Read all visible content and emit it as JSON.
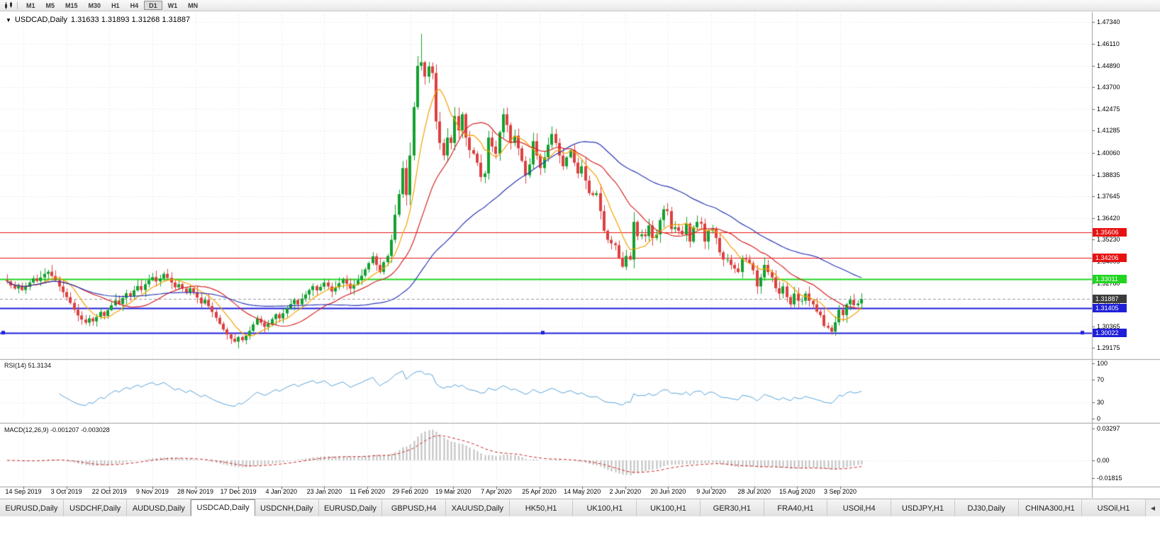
{
  "toolbar": {
    "timeframes": [
      {
        "label": "M1"
      },
      {
        "label": "M5"
      },
      {
        "label": "M15"
      },
      {
        "label": "M30"
      },
      {
        "label": "H1"
      },
      {
        "label": "H4"
      },
      {
        "label": "D1",
        "active": true
      },
      {
        "label": "W1"
      },
      {
        "label": "MN"
      }
    ]
  },
  "chart_header": {
    "dropdown_icon": "▼",
    "symbol": "USDCAD,Daily",
    "ohlc": "1.31633 1.31893 1.31268 1.31887"
  },
  "price_axis": {
    "labels": [
      "1.47340",
      "1.46110",
      "1.44890",
      "1.43700",
      "1.42475",
      "1.41285",
      "1.40060",
      "1.38835",
      "1.37645",
      "1.36420",
      "1.35230",
      "1.34005",
      "1.32780",
      "1.31590",
      "1.30365",
      "1.29175"
    ]
  },
  "levels": [
    {
      "value": 1.35606,
      "label": "1.35606",
      "color": "#e81111",
      "width": 1,
      "type": "resistance"
    },
    {
      "value": 1.34206,
      "label": "1.34206",
      "color": "#e81111",
      "width": 1,
      "type": "resistance"
    },
    {
      "value": 1.33011,
      "label": "1.33011",
      "color": "#1fd51f",
      "width": 2,
      "type": "level"
    },
    {
      "value": 1.31405,
      "label": "1.31405",
      "color": "#1f1fd9",
      "width": 2,
      "type": "support"
    },
    {
      "value": 1.30022,
      "label": "1.30022",
      "color": "#1f1fd9",
      "width": 2,
      "type": "support",
      "handles": true
    }
  ],
  "current_price": {
    "value": 1.31887,
    "label": "1.31887",
    "tag_color": "#3b3b3b",
    "line_color": "#9a9a9a"
  },
  "rsi": {
    "label": "RSI(14) 51.3134",
    "period": 14,
    "value": 51.3134,
    "color": "#57a2d8",
    "levels": [
      {
        "label": "100",
        "value": 100
      },
      {
        "label": "70",
        "value": 70
      },
      {
        "label": "30",
        "value": 30
      },
      {
        "label": "0",
        "value": 0
      }
    ]
  },
  "macd": {
    "label": "MACD(12,26,9) -0.001207 -0.003028",
    "fast": 12,
    "slow": 26,
    "signal": 9,
    "macd_value": -0.001207,
    "signal_value": -0.003028,
    "histogram_color": "#bfbfbf",
    "signal_color": "#cc2222",
    "levels": [
      {
        "label": "0.03297",
        "value": 0.03297
      },
      {
        "label": "0.00",
        "value": 0
      },
      {
        "label": "-0.01815",
        "value": -0.01815
      }
    ]
  },
  "date_axis": [
    "14 Sep 2019",
    "3 Oct 2019",
    "22 Oct 2019",
    "9 Nov 2019",
    "28 Nov 2019",
    "17 Dec 2019",
    "4 Jan 2020",
    "23 Jan 2020",
    "11 Feb 2020",
    "29 Feb 2020",
    "19 Mar 2020",
    "7 Apr 2020",
    "25 Apr 2020",
    "14 May 2020",
    "2 Jun 2020",
    "20 Jun 2020",
    "9 Jul 2020",
    "28 Jul 2020",
    "15 Aug 2020",
    "3 Sep 2020"
  ],
  "tabs": {
    "scroll_left_icon": "◀",
    "items": [
      {
        "label": "EURUSD,Daily"
      },
      {
        "label": "USDCHF,Daily"
      },
      {
        "label": "AUDUSD,Daily"
      },
      {
        "label": "USDCAD,Daily",
        "active": true
      },
      {
        "label": "USDCNH,Daily"
      },
      {
        "label": "EURUSD,Daily"
      },
      {
        "label": "GBPUSD,H4"
      },
      {
        "label": "XAUUSD,Daily"
      },
      {
        "label": "HK50,H1"
      },
      {
        "label": "UK100,H1"
      },
      {
        "label": "UK100,H1"
      },
      {
        "label": "GER30,H1"
      },
      {
        "label": "FRA40,H1"
      },
      {
        "label": "USOil,H4"
      },
      {
        "label": "USDJPY,H1"
      },
      {
        "label": "DJ30,Daily"
      },
      {
        "label": "CHINA300,H1"
      },
      {
        "label": "USOil,H1"
      }
    ]
  },
  "chart_data": {
    "type": "candlestick",
    "symbol": "USDCAD",
    "timeframe": "Daily",
    "first_open": 1.3295,
    "spike_high": 1.4668,
    "colors": {
      "up": "#12a12f",
      "down": "#dd4040"
    },
    "moving_averages": [
      {
        "name": "fast-ma",
        "period": 8,
        "color": "#f5a000"
      },
      {
        "name": "mid-ma",
        "period": 20,
        "color": "#d42525"
      },
      {
        "name": "slow-ma",
        "period": 50,
        "color": "#2b38b5"
      }
    ],
    "closes": [
      1.3288,
      1.3265,
      1.3248,
      1.3262,
      1.324,
      1.3258,
      1.3282,
      1.3305,
      1.329,
      1.331,
      1.333,
      1.3342,
      1.3318,
      1.3295,
      1.326,
      1.3228,
      1.32,
      1.3168,
      1.313,
      1.3098,
      1.3075,
      1.3058,
      1.3082,
      1.3065,
      1.309,
      1.3118,
      1.3095,
      1.3128,
      1.3155,
      1.3182,
      1.3162,
      1.3195,
      1.3222,
      1.3205,
      1.3238,
      1.3262,
      1.324,
      1.3272,
      1.3295,
      1.3312,
      1.3288,
      1.3305,
      1.333,
      1.3308,
      1.3282,
      1.3255,
      1.3272,
      1.3248,
      1.3225,
      1.325,
      1.3228,
      1.3198,
      1.3165,
      1.3185,
      1.315,
      1.3118,
      1.3085,
      1.3052,
      1.302,
      1.2992,
      1.2968,
      1.2952,
      1.2978,
      1.296,
      1.2985,
      1.3012,
      1.3048,
      1.308,
      1.3058,
      1.3035,
      1.3052,
      1.3078,
      1.3105,
      1.3082,
      1.311,
      1.3138,
      1.3162,
      1.3185,
      1.316,
      1.3192,
      1.3215,
      1.324,
      1.3262,
      1.3238,
      1.3258,
      1.3282,
      1.326,
      1.3232,
      1.3255,
      1.3278,
      1.33,
      1.3275,
      1.3248,
      1.327,
      1.3295,
      1.332,
      1.3355,
      1.339,
      1.3428,
      1.338,
      1.334,
      1.3395,
      1.343,
      1.352,
      1.366,
      1.3775,
      1.392,
      1.377,
      1.399,
      1.426,
      1.449,
      1.451,
      1.443,
      1.4487,
      1.445,
      1.418,
      1.406,
      1.399,
      1.409,
      1.406,
      1.421,
      1.413,
      1.422,
      1.409,
      1.402,
      1.4,
      1.395,
      1.387,
      1.389,
      1.409,
      1.404,
      1.4,
      1.412,
      1.422,
      1.416,
      1.406,
      1.41,
      1.403,
      1.396,
      1.388,
      1.394,
      1.407,
      1.399,
      1.392,
      1.398,
      1.405,
      1.411,
      1.406,
      1.399,
      1.393,
      1.398,
      1.402,
      1.395,
      1.389,
      1.393,
      1.385,
      1.378,
      1.377,
      1.378,
      1.368,
      1.357,
      1.352,
      1.35,
      1.349,
      1.342,
      1.337,
      1.343,
      1.341,
      1.362,
      1.354,
      1.355,
      1.354,
      1.36,
      1.353,
      1.355,
      1.363,
      1.369,
      1.368,
      1.358,
      1.359,
      1.357,
      1.355,
      1.361,
      1.351,
      1.359,
      1.362,
      1.361,
      1.351,
      1.357,
      1.358,
      1.353,
      1.345,
      1.341,
      1.341,
      1.338,
      1.336,
      1.334,
      1.342,
      1.341,
      1.339,
      1.335,
      1.326,
      1.331,
      1.338,
      1.334,
      1.331,
      1.325,
      1.322,
      1.326,
      1.32,
      1.316,
      1.322,
      1.318,
      1.318,
      1.322,
      1.318,
      1.316,
      1.312,
      1.31,
      1.304,
      1.303,
      1.3008,
      1.306,
      1.313,
      1.31,
      1.316,
      1.3185,
      1.3155,
      1.3165,
      1.31887
    ]
  }
}
